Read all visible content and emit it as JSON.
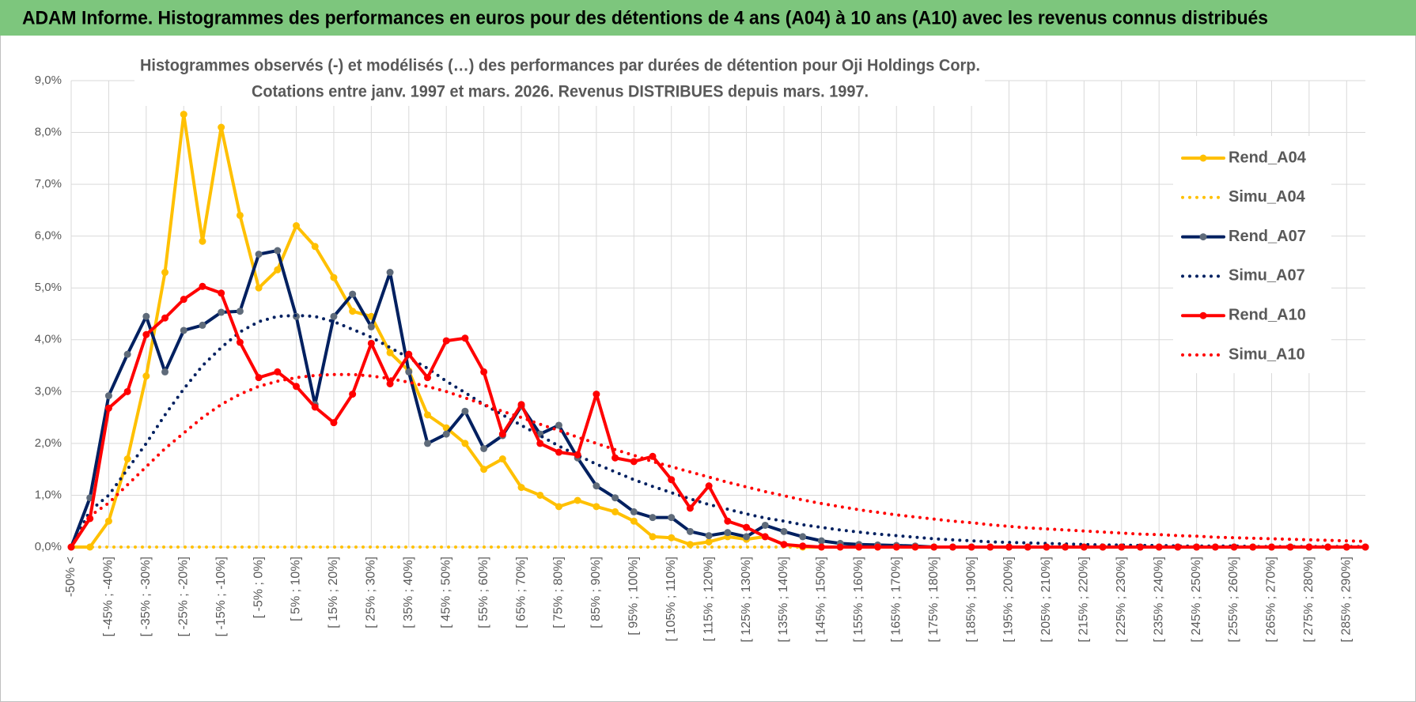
{
  "chart_data": {
    "type": "line",
    "header": "ADAM Informe. Histogrammes des performances en euros pour des détentions de 4 ans (A04) à 10 ans (A10) avec les revenus connus distribués",
    "title": "Histogrammes observés (-) et modélisés (…) des performances par durées de détention pour Oji Holdings Corp.",
    "subtitle": "Cotations entre janv. 1997 et mars. 2026.  Revenus DISTRIBUES depuis mars. 1997.",
    "categories": [
      "-50% <",
      null,
      "[ -45% ; -40%]",
      null,
      "[ -35% ; -30%]",
      null,
      "[ -25% ; -20%]",
      null,
      "[ -15% ; -10%]",
      null,
      "[ -5% ; 0%]",
      null,
      "[ 5% ; 10%]",
      null,
      "[ 15% ; 20%]",
      null,
      "[ 25% ; 30%]",
      null,
      "[ 35% ; 40%]",
      null,
      "[ 45% ; 50%]",
      null,
      "[ 55% ; 60%]",
      null,
      "[ 65% ; 70%]",
      null,
      "[ 75% ; 80%]",
      null,
      "[ 85% ; 90%]",
      null,
      "[ 95% ; 100%]",
      null,
      "[ 105% ; 110%]",
      null,
      "[ 115% ; 120%]",
      null,
      "[ 125% ; 130%]",
      null,
      "[ 135% ; 140%]",
      null,
      "[ 145% ; 150%]",
      null,
      "[ 155% ; 160%]",
      null,
      "[ 165% ; 170%]",
      null,
      "[ 175% ; 180%]",
      null,
      "[ 185% ; 190%]",
      null,
      "[ 195% ; 200%]",
      null,
      "[ 205% ; 210%]",
      null,
      "[ 215% ; 220%]",
      null,
      "[ 225% ; 230%]",
      null,
      "[ 235% ; 240%]",
      null,
      "[ 245% ; 250%]",
      null,
      "[ 255% ; 260%]",
      null,
      "[ 265% ; 270%]",
      null,
      "[ 275% ; 280%]",
      null,
      "[ 285% ; 290%]",
      null
    ],
    "series": [
      {
        "name": "Rend_A04",
        "color": "#FFC000",
        "style": "solid",
        "marker_color": "#FFC000",
        "values": [
          0,
          0,
          0.5,
          1.7,
          3.3,
          5.3,
          8.35,
          5.9,
          8.1,
          6.4,
          5.0,
          5.35,
          6.2,
          5.8,
          5.2,
          4.55,
          4.45,
          3.75,
          3.4,
          2.55,
          2.3,
          2.0,
          1.5,
          1.7,
          1.15,
          1.0,
          0.78,
          0.9,
          0.78,
          0.68,
          0.5,
          0.2,
          0.18,
          0.05,
          0.1,
          0.2,
          0.15,
          0.2,
          0.05,
          0,
          0,
          0,
          0,
          0,
          0,
          0,
          0,
          0,
          0,
          0,
          0,
          0,
          0,
          0,
          0,
          0,
          0,
          0,
          0,
          0,
          0,
          0,
          0,
          0,
          0,
          0,
          0,
          0,
          0,
          0
        ]
      },
      {
        "name": "Simu_A04",
        "color": "#FFC000",
        "style": "dotted",
        "values": [
          0,
          0,
          0,
          0,
          0,
          0,
          0,
          0,
          0,
          0,
          0,
          0,
          0,
          0,
          0,
          0,
          0,
          0,
          0,
          0,
          0,
          0,
          0,
          0,
          0,
          0,
          0,
          0,
          0,
          0,
          0,
          0,
          0,
          0,
          0,
          0,
          0,
          0,
          0,
          0,
          0,
          0,
          0,
          0,
          0,
          0,
          0,
          0,
          0,
          0,
          0,
          0,
          0,
          0,
          0,
          0,
          0,
          0,
          0,
          0,
          0,
          0,
          0,
          0,
          0,
          0,
          0,
          0,
          0,
          0
        ]
      },
      {
        "name": "Rend_A07",
        "color": "#002060",
        "style": "solid",
        "marker_color": "#5F6B7A",
        "values": [
          0,
          0.95,
          2.92,
          3.72,
          4.45,
          3.38,
          4.18,
          4.28,
          4.53,
          4.55,
          5.65,
          5.72,
          4.45,
          2.75,
          4.45,
          4.88,
          4.25,
          5.3,
          3.38,
          2.0,
          2.18,
          2.62,
          1.9,
          2.15,
          2.72,
          2.18,
          2.35,
          1.72,
          1.18,
          0.95,
          0.68,
          0.57,
          0.57,
          0.3,
          0.22,
          0.28,
          0.2,
          0.42,
          0.3,
          0.2,
          0.12,
          0.07,
          0.05,
          0.04,
          0.03,
          0.02,
          0,
          0,
          0,
          0,
          0,
          0,
          0,
          0,
          0,
          0,
          0,
          0,
          0,
          0,
          0,
          0,
          0,
          0,
          0,
          0,
          0,
          0,
          0,
          0
        ]
      },
      {
        "name": "Simu_A07",
        "color": "#002060",
        "style": "dotted",
        "values": [
          0,
          0.7,
          1.0,
          1.5,
          2.0,
          2.55,
          3.05,
          3.5,
          3.85,
          4.15,
          4.35,
          4.45,
          4.47,
          4.45,
          4.35,
          4.2,
          4.05,
          3.85,
          3.65,
          3.45,
          3.2,
          2.98,
          2.75,
          2.55,
          2.35,
          2.15,
          1.95,
          1.77,
          1.6,
          1.45,
          1.3,
          1.17,
          1.05,
          0.93,
          0.82,
          0.73,
          0.64,
          0.56,
          0.5,
          0.43,
          0.38,
          0.33,
          0.29,
          0.25,
          0.22,
          0.19,
          0.16,
          0.14,
          0.12,
          0.1,
          0.09,
          0.08,
          0.07,
          0.06,
          0.05,
          0.04,
          0.04,
          0.03,
          0.03,
          0.02,
          0.02,
          0.02,
          0.02,
          0.01,
          0.01,
          0.01,
          0.01,
          0.01,
          0.01,
          0.01
        ]
      },
      {
        "name": "Rend_A10",
        "color": "#FF0000",
        "style": "solid",
        "marker_color": "#FF0000",
        "values": [
          0,
          0.55,
          2.68,
          3.0,
          4.1,
          4.42,
          4.78,
          5.03,
          4.9,
          3.95,
          3.27,
          3.38,
          3.1,
          2.7,
          2.4,
          2.95,
          3.93,
          3.15,
          3.72,
          3.27,
          3.98,
          4.03,
          3.38,
          2.18,
          2.75,
          2.0,
          1.83,
          1.78,
          2.95,
          1.72,
          1.65,
          1.75,
          1.3,
          0.75,
          1.18,
          0.5,
          0.38,
          0.2,
          0.05,
          0.02,
          0,
          0,
          0,
          0,
          0,
          0,
          0,
          0,
          0,
          0,
          0,
          0,
          0,
          0,
          0,
          0,
          0,
          0,
          0,
          0,
          0,
          0,
          0,
          0,
          0,
          0,
          0,
          0,
          0,
          0
        ]
      },
      {
        "name": "Simu_A10",
        "color": "#FF0000",
        "style": "dotted",
        "values": [
          0,
          0.6,
          0.85,
          1.2,
          1.55,
          1.9,
          2.2,
          2.5,
          2.75,
          2.95,
          3.1,
          3.2,
          3.27,
          3.31,
          3.33,
          3.33,
          3.3,
          3.25,
          3.18,
          3.1,
          3.0,
          2.88,
          2.75,
          2.62,
          2.5,
          2.37,
          2.25,
          2.12,
          2.0,
          1.88,
          1.77,
          1.65,
          1.55,
          1.45,
          1.35,
          1.25,
          1.16,
          1.07,
          0.99,
          0.91,
          0.84,
          0.78,
          0.72,
          0.67,
          0.62,
          0.58,
          0.54,
          0.5,
          0.47,
          0.43,
          0.4,
          0.37,
          0.35,
          0.33,
          0.31,
          0.29,
          0.27,
          0.25,
          0.24,
          0.22,
          0.21,
          0.19,
          0.18,
          0.17,
          0.16,
          0.15,
          0.14,
          0.13,
          0.12,
          0.11
        ]
      }
    ],
    "ylim": [
      0,
      9
    ],
    "yticks": [
      {
        "value": 0,
        "label": "0,0%"
      },
      {
        "value": 1,
        "label": "1,0%"
      },
      {
        "value": 2,
        "label": "2,0%"
      },
      {
        "value": 3,
        "label": "3,0%"
      },
      {
        "value": 4,
        "label": "4,0%"
      },
      {
        "value": 5,
        "label": "5,0%"
      },
      {
        "value": 6,
        "label": "6,0%"
      },
      {
        "value": 7,
        "label": "7,0%"
      },
      {
        "value": 8,
        "label": "8,0%"
      },
      {
        "value": 9,
        "label": "9,0%"
      }
    ],
    "grid": true,
    "legend": "right"
  }
}
